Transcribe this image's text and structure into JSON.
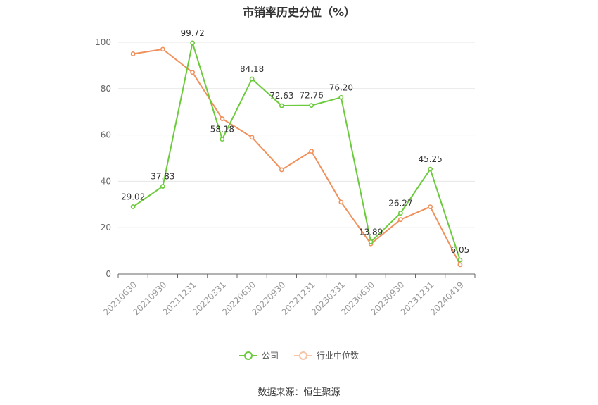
{
  "chart_data": {
    "type": "line",
    "title": "市销率历史分位（%）",
    "xlabel": "",
    "ylabel": "",
    "categories": [
      "20210630",
      "20210930",
      "20211231",
      "20220331",
      "20220630",
      "20220930",
      "20221231",
      "20230331",
      "20230630",
      "20230930",
      "20231231",
      "20240419"
    ],
    "ylim": [
      0,
      100
    ],
    "yticks": [
      0,
      20,
      40,
      60,
      80,
      100
    ],
    "grid": true,
    "legend_position": "bottom",
    "series": [
      {
        "name": "公司",
        "color": "#6CCB3C",
        "values": [
          29.02,
          37.83,
          99.72,
          58.18,
          84.18,
          72.63,
          72.76,
          76.2,
          13.89,
          26.27,
          45.25,
          6.05
        ],
        "labels": [
          "29.02",
          "37.83",
          "99.72",
          "58.18",
          "84.18",
          "72.63",
          "72.76",
          "76.20",
          "13.89",
          "26.27",
          "45.25",
          "6.05"
        ]
      },
      {
        "name": "行业中位数",
        "color": "#F0915C",
        "values": [
          95,
          97,
          87,
          67,
          59,
          45,
          53,
          31,
          13,
          23.5,
          29,
          4
        ]
      }
    ],
    "source": "数据来源：恒生聚源"
  }
}
